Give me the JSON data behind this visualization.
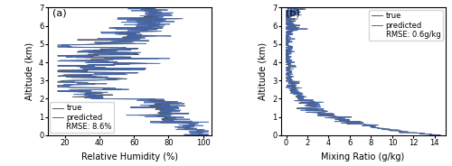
{
  "panel_a_label": "(a)",
  "panel_b_label": "(b)",
  "xlabel_a": "Relative Humidity (%)",
  "xlabel_b": "Mixing Ratio (g/kg)",
  "ylabel": "Altitude (km)",
  "xlim_a": [
    10,
    105
  ],
  "xlim_b": [
    -0.5,
    15
  ],
  "ylim": [
    0,
    7
  ],
  "xticks_a": [
    20,
    40,
    60,
    80,
    100
  ],
  "xticks_b": [
    0,
    2,
    4,
    6,
    8,
    10,
    12,
    14
  ],
  "yticks": [
    0,
    1,
    2,
    3,
    4,
    5,
    6,
    7
  ],
  "legend_a": [
    "true",
    "predicted",
    "RMSE: 8.6%"
  ],
  "legend_b": [
    "true",
    "predicted",
    "RMSE: 0.6g/kg"
  ],
  "true_color": "#555555",
  "predicted_color": "#4466aa",
  "true_lw": 0.7,
  "predicted_lw": 0.7,
  "fontsize": 7,
  "tick_fontsize": 6
}
